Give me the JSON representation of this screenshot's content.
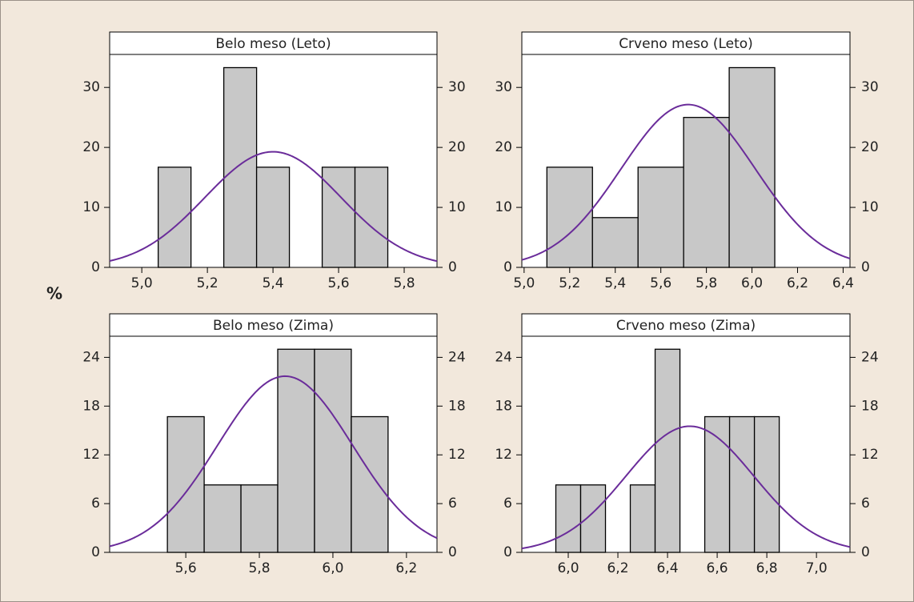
{
  "ylabel": "%",
  "chart_data": [
    {
      "type": "histogram",
      "title": "Belo meso (Leto)",
      "bins": [
        5.05,
        5.15,
        5.25,
        5.35,
        5.45,
        5.55,
        5.65,
        5.75
      ],
      "values": [
        16.7,
        0,
        33.3,
        16.7,
        0,
        16.7,
        16.7
      ],
      "color": "#c8c8c8",
      "fit": {
        "mean": 5.4,
        "sd": 0.207,
        "color": "#6a2c9a"
      },
      "xlim": [
        4.902,
        5.9
      ],
      "ylim": [
        0,
        35.5
      ],
      "xticks": [
        {
          "value": 5.0,
          "label": "5,0"
        },
        {
          "value": 5.2,
          "label": "5,2"
        },
        {
          "value": 5.4,
          "label": "5,4"
        },
        {
          "value": 5.6,
          "label": "5,6"
        },
        {
          "value": 5.8,
          "label": "5,8"
        }
      ],
      "yticks": [
        0,
        10,
        20,
        30
      ]
    },
    {
      "type": "histogram",
      "title": "Crveno meso (Leto)",
      "bins": [
        5.1,
        5.3,
        5.5,
        5.7,
        5.9,
        6.1
      ],
      "values": [
        16.7,
        8.3,
        16.7,
        25,
        33.3
      ],
      "color": "#c8c8c8",
      "fit": {
        "mean": 5.72,
        "sd": 0.294,
        "color": "#6a2c9a"
      },
      "xlim": [
        4.99,
        6.43
      ],
      "ylim": [
        0,
        35.5
      ],
      "xticks": [
        {
          "value": 5.0,
          "label": "5,0"
        },
        {
          "value": 5.2,
          "label": "5,2"
        },
        {
          "value": 5.4,
          "label": "5,4"
        },
        {
          "value": 5.6,
          "label": "5,6"
        },
        {
          "value": 5.8,
          "label": "5,8"
        },
        {
          "value": 6.0,
          "label": "6,0"
        },
        {
          "value": 6.2,
          "label": "6,2"
        },
        {
          "value": 6.4,
          "label": "6,4"
        }
      ],
      "yticks": [
        0,
        10,
        20,
        30
      ]
    },
    {
      "type": "histogram",
      "title": "Belo meso (Zima)",
      "bins": [
        5.55,
        5.65,
        5.75,
        5.85,
        5.95,
        6.05,
        6.15
      ],
      "values": [
        16.7,
        8.3,
        8.3,
        25,
        25,
        16.7
      ],
      "color": "#c8c8c8",
      "fit": {
        "mean": 5.87,
        "sd": 0.184,
        "color": "#6a2c9a"
      },
      "xlim": [
        5.393,
        6.283
      ],
      "ylim": [
        0,
        26.6
      ],
      "xticks": [
        {
          "value": 5.6,
          "label": "5,6"
        },
        {
          "value": 5.8,
          "label": "5,8"
        },
        {
          "value": 6.0,
          "label": "6,0"
        },
        {
          "value": 6.2,
          "label": "6,2"
        }
      ],
      "yticks": [
        0,
        6,
        12,
        18,
        24
      ]
    },
    {
      "type": "histogram",
      "title": "Crveno meso (Zima)",
      "bins": [
        5.95,
        6.05,
        6.15,
        6.25,
        6.35,
        6.45,
        6.55,
        6.65,
        6.75,
        6.85
      ],
      "values": [
        8.3,
        8.3,
        0,
        8.3,
        25,
        0,
        16.7,
        16.7,
        16.7
      ],
      "color": "#c8c8c8",
      "fit": {
        "mean": 6.49,
        "sd": 0.257,
        "color": "#6a2c9a"
      },
      "xlim": [
        5.813,
        7.135
      ],
      "ylim": [
        0,
        26.6
      ],
      "xticks": [
        {
          "value": 6.0,
          "label": "6,0"
        },
        {
          "value": 6.2,
          "label": "6,2"
        },
        {
          "value": 6.4,
          "label": "6,4"
        },
        {
          "value": 6.6,
          "label": "6,6"
        },
        {
          "value": 6.8,
          "label": "6,8"
        },
        {
          "value": 7.0,
          "label": "7,0"
        }
      ],
      "yticks": [
        0,
        6,
        12,
        18,
        24
      ]
    }
  ]
}
